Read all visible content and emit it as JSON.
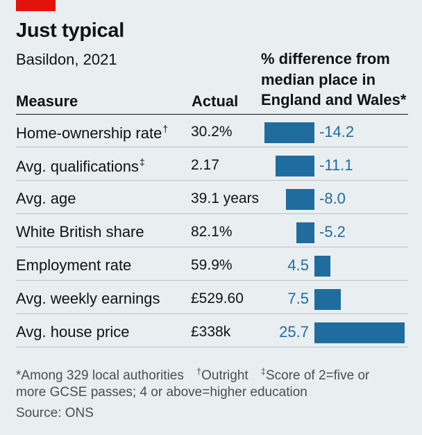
{
  "header": {
    "title": "Just typical",
    "subtitle": "Basildon, 2021"
  },
  "columns": {
    "measure": "Measure",
    "actual": "Actual",
    "diff_line1": "% difference from",
    "diff_line2": "median place in",
    "diff_line3": "England and Wales*"
  },
  "rows": [
    {
      "measure": "Home-ownership rate",
      "mark": "†",
      "actual": "30.2%",
      "diff_label": "-14.2"
    },
    {
      "measure": "Avg. qualifications",
      "mark": "‡",
      "actual": "2.17",
      "diff_label": "-11.1"
    },
    {
      "measure": "Avg. age",
      "mark": "",
      "actual": "39.1 years",
      "diff_label": "-8.0"
    },
    {
      "measure": "White British share",
      "mark": "",
      "actual": "82.1%",
      "diff_label": "-5.2"
    },
    {
      "measure": "Employment rate",
      "mark": "",
      "actual": "59.9%",
      "diff_label": "4.5"
    },
    {
      "measure": "Avg. weekly earnings",
      "mark": "",
      "actual": "£529.60",
      "diff_label": "7.5"
    },
    {
      "measure": "Avg. house price",
      "mark": "",
      "actual": "£338k",
      "diff_label": "25.7"
    }
  ],
  "footnotes": {
    "note1": "*Among 329 local authorities",
    "note2_mark": "†",
    "note2": "Outright",
    "note3_mark": "‡",
    "note3a": "Score of 2=five or",
    "note3b": "more GCSE passes; 4 or above=higher education",
    "source": "Source: ONS"
  },
  "colors": {
    "bar": "#1f6d9e",
    "background": "#e9eef0",
    "accent": "#e3120b"
  },
  "chart_data": {
    "type": "bar",
    "orientation": "horizontal",
    "title": "Just typical",
    "subtitle": "Basildon, 2021",
    "categories": [
      "Home-ownership rate",
      "Avg. qualifications",
      "Avg. age",
      "White British share",
      "Employment rate",
      "Avg. weekly earnings",
      "Avg. house price"
    ],
    "actual": [
      "30.2%",
      "2.17",
      "39.1 years",
      "82.1%",
      "59.9%",
      "£529.60",
      "£338k"
    ],
    "values": [
      -14.2,
      -11.1,
      -8.0,
      -5.2,
      4.5,
      7.5,
      25.7
    ],
    "value_label": "% difference from median place in England and Wales*",
    "baseline": 0,
    "grid": false,
    "legend": "none"
  }
}
